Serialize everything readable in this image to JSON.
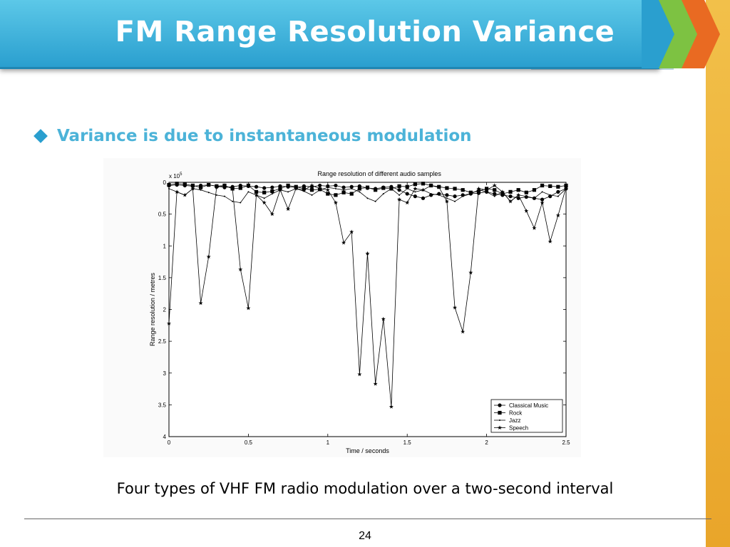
{
  "slide": {
    "title": "FM Range Resolution Variance",
    "bullet": "Variance is due to instantaneous modulation",
    "caption": "Four types of VHF FM radio modulation over a two-second interval",
    "page_number": "24",
    "colors": {
      "title_bar": "#2a9fcf",
      "bullet_text": "#4cb3d8",
      "accent_strip": "#e9a52a"
    }
  },
  "chart_data": {
    "type": "line",
    "title": "Range resolution of different audio samples",
    "xlabel": "Time / seconds",
    "ylabel": "Range resolution / metres",
    "y_multiplier": "x 10",
    "y_multiplier_exp": "5",
    "xlim": [
      0,
      2.5
    ],
    "ylim": [
      0,
      4
    ],
    "y_reversed": true,
    "xticks": [
      "0",
      "0.5",
      "1",
      "1.5",
      "2",
      "2.5"
    ],
    "yticks": [
      "0",
      "0.5",
      "1",
      "1.5",
      "2",
      "2.5",
      "3",
      "3.5",
      "4"
    ],
    "legend_position": "bottom-right",
    "grid": false,
    "series": [
      {
        "name": "Classical Music",
        "marker": "circle",
        "x": [
          0,
          0.05,
          0.1,
          0.15,
          0.2,
          0.25,
          0.3,
          0.35,
          0.4,
          0.45,
          0.5,
          0.55,
          0.6,
          0.65,
          0.7,
          0.75,
          0.8,
          0.85,
          0.9,
          0.95,
          1.0,
          1.05,
          1.1,
          1.15,
          1.2,
          1.25,
          1.3,
          1.35,
          1.4,
          1.45,
          1.5,
          1.55,
          1.6,
          1.65,
          1.7,
          1.75,
          1.8,
          1.85,
          1.9,
          1.95,
          2.0,
          2.05,
          2.1,
          2.15,
          2.2,
          2.25,
          2.3,
          2.35,
          2.4,
          2.45,
          2.5
        ],
        "values": [
          0.05,
          0.04,
          0.05,
          0.06,
          0.05,
          0.04,
          0.06,
          0.08,
          0.07,
          0.05,
          0.06,
          0.07,
          0.09,
          0.08,
          0.06,
          0.07,
          0.08,
          0.06,
          0.07,
          0.05,
          0.06,
          0.05,
          0.08,
          0.07,
          0.06,
          0.09,
          0.1,
          0.08,
          0.07,
          0.12,
          0.18,
          0.22,
          0.25,
          0.2,
          0.18,
          0.2,
          0.22,
          0.2,
          0.18,
          0.17,
          0.15,
          0.18,
          0.2,
          0.22,
          0.25,
          0.23,
          0.25,
          0.27,
          0.22,
          0.15,
          0.1
        ]
      },
      {
        "name": "Rock",
        "marker": "square",
        "x": [
          0,
          0.05,
          0.1,
          0.15,
          0.2,
          0.25,
          0.3,
          0.35,
          0.4,
          0.45,
          0.5,
          0.55,
          0.6,
          0.65,
          0.7,
          0.75,
          0.8,
          0.85,
          0.9,
          0.95,
          1.0,
          1.05,
          1.1,
          1.15,
          1.2,
          1.25,
          1.3,
          1.35,
          1.4,
          1.45,
          1.5,
          1.55,
          1.6,
          1.65,
          1.7,
          1.75,
          1.8,
          1.85,
          1.9,
          1.95,
          2.0,
          2.05,
          2.1,
          2.15,
          2.2,
          2.25,
          2.3,
          2.35,
          2.4,
          2.45,
          2.5
        ],
        "values": [
          0.04,
          0.02,
          0.03,
          0.05,
          0.08,
          0.04,
          0.06,
          0.05,
          0.1,
          0.09,
          0.05,
          0.15,
          0.16,
          0.14,
          0.1,
          0.05,
          0.07,
          0.1,
          0.12,
          0.11,
          0.18,
          0.2,
          0.16,
          0.18,
          0.1,
          0.08,
          0.12,
          0.09,
          0.1,
          0.06,
          0.07,
          0.03,
          0.02,
          0.05,
          0.07,
          0.09,
          0.1,
          0.12,
          0.16,
          0.14,
          0.1,
          0.12,
          0.18,
          0.15,
          0.12,
          0.16,
          0.12,
          0.05,
          0.06,
          0.07,
          0.05
        ]
      },
      {
        "name": "Jazz",
        "marker": "dot",
        "x": [
          0,
          0.05,
          0.1,
          0.15,
          0.2,
          0.25,
          0.3,
          0.35,
          0.4,
          0.45,
          0.5,
          0.55,
          0.6,
          0.65,
          0.7,
          0.75,
          0.8,
          0.85,
          0.9,
          0.95,
          1.0,
          1.05,
          1.1,
          1.15,
          1.2,
          1.25,
          1.3,
          1.35,
          1.4,
          1.45,
          1.5,
          1.55,
          1.6,
          1.65,
          1.7,
          1.75,
          1.8,
          1.85,
          1.9,
          1.95,
          2.0,
          2.05,
          2.1,
          2.15,
          2.2,
          2.25,
          2.3,
          2.35,
          2.4,
          2.45,
          2.5
        ],
        "values": [
          0.1,
          0.15,
          0.2,
          0.1,
          0.12,
          0.16,
          0.2,
          0.22,
          0.3,
          0.32,
          0.15,
          0.2,
          0.25,
          0.18,
          0.12,
          0.15,
          0.1,
          0.14,
          0.2,
          0.12,
          0.08,
          0.1,
          0.12,
          0.1,
          0.15,
          0.25,
          0.3,
          0.18,
          0.1,
          0.2,
          0.1,
          0.15,
          0.12,
          0.18,
          0.2,
          0.25,
          0.3,
          0.22,
          0.18,
          0.12,
          0.15,
          0.22,
          0.15,
          0.3,
          0.2,
          0.22,
          0.25,
          0.15,
          0.2,
          0.22,
          0.1
        ]
      },
      {
        "name": "Speech",
        "marker": "star",
        "x": [
          0,
          0.05,
          0.1,
          0.15,
          0.2,
          0.25,
          0.3,
          0.35,
          0.4,
          0.45,
          0.5,
          0.55,
          0.6,
          0.65,
          0.7,
          0.75,
          0.8,
          0.85,
          0.9,
          0.95,
          1.0,
          1.05,
          1.1,
          1.15,
          1.2,
          1.25,
          1.3,
          1.35,
          1.4,
          1.45,
          1.5,
          1.55,
          1.6,
          1.65,
          1.7,
          1.75,
          1.8,
          1.85,
          1.9,
          1.95,
          2.0,
          2.05,
          2.1,
          2.15,
          2.2,
          2.25,
          2.3,
          2.35,
          2.4,
          2.45,
          2.5
        ],
        "values": [
          2.22,
          0.15,
          0.2,
          0.1,
          1.9,
          1.17,
          0.08,
          0.05,
          0.1,
          1.37,
          1.98,
          0.2,
          0.32,
          0.5,
          0.12,
          0.42,
          0.1,
          0.12,
          0.05,
          0.1,
          0.12,
          0.32,
          0.95,
          0.78,
          3.02,
          1.12,
          3.17,
          2.15,
          3.53,
          0.27,
          0.32,
          0.1,
          0.12,
          0.05,
          0.08,
          0.3,
          1.97,
          2.35,
          1.42,
          0.1,
          0.12,
          0.05,
          0.15,
          0.3,
          0.2,
          0.45,
          0.72,
          0.32,
          0.93,
          0.52,
          0.08
        ]
      }
    ]
  }
}
